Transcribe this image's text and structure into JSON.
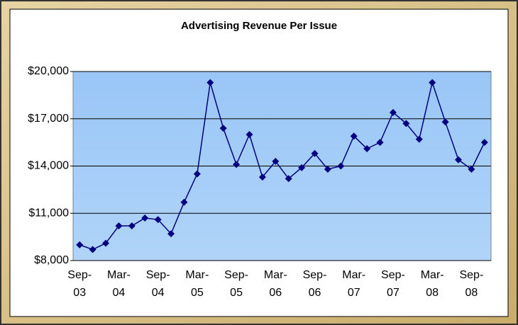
{
  "chart_data": {
    "type": "line",
    "title": "Advertising Revenue Per Issue",
    "categories": [
      "Sep-03",
      null,
      null,
      "Mar-04",
      null,
      null,
      "Sep-04",
      null,
      null,
      "Mar-05",
      null,
      null,
      "Sep-05",
      null,
      null,
      "Mar-06",
      null,
      null,
      "Sep-06",
      null,
      null,
      "Mar-07",
      null,
      null,
      "Sep-07",
      null,
      null,
      "Mar-08",
      null,
      null,
      "Sep-08",
      null
    ],
    "series": [
      {
        "color": "#000080",
        "values": [
          9000,
          8700,
          9100,
          10200,
          10200,
          10700,
          10600,
          9700,
          11700,
          13500,
          19300,
          16400,
          14100,
          16000,
          13300,
          14300,
          13200,
          13900,
          14800,
          13800,
          14000,
          15900,
          15100,
          15500,
          17400,
          16700,
          15700,
          19300,
          16800,
          14400,
          13800,
          15500
        ]
      }
    ],
    "ylim": [
      8000,
      20000
    ],
    "yticks": [
      {
        "value": 8000,
        "label": "$8,000"
      },
      {
        "value": 11000,
        "label": "$11,000"
      },
      {
        "value": 14000,
        "label": "$14,000"
      },
      {
        "value": 17000,
        "label": "$17,000"
      },
      {
        "value": 20000,
        "label": "$20,000"
      }
    ],
    "grid": true
  }
}
